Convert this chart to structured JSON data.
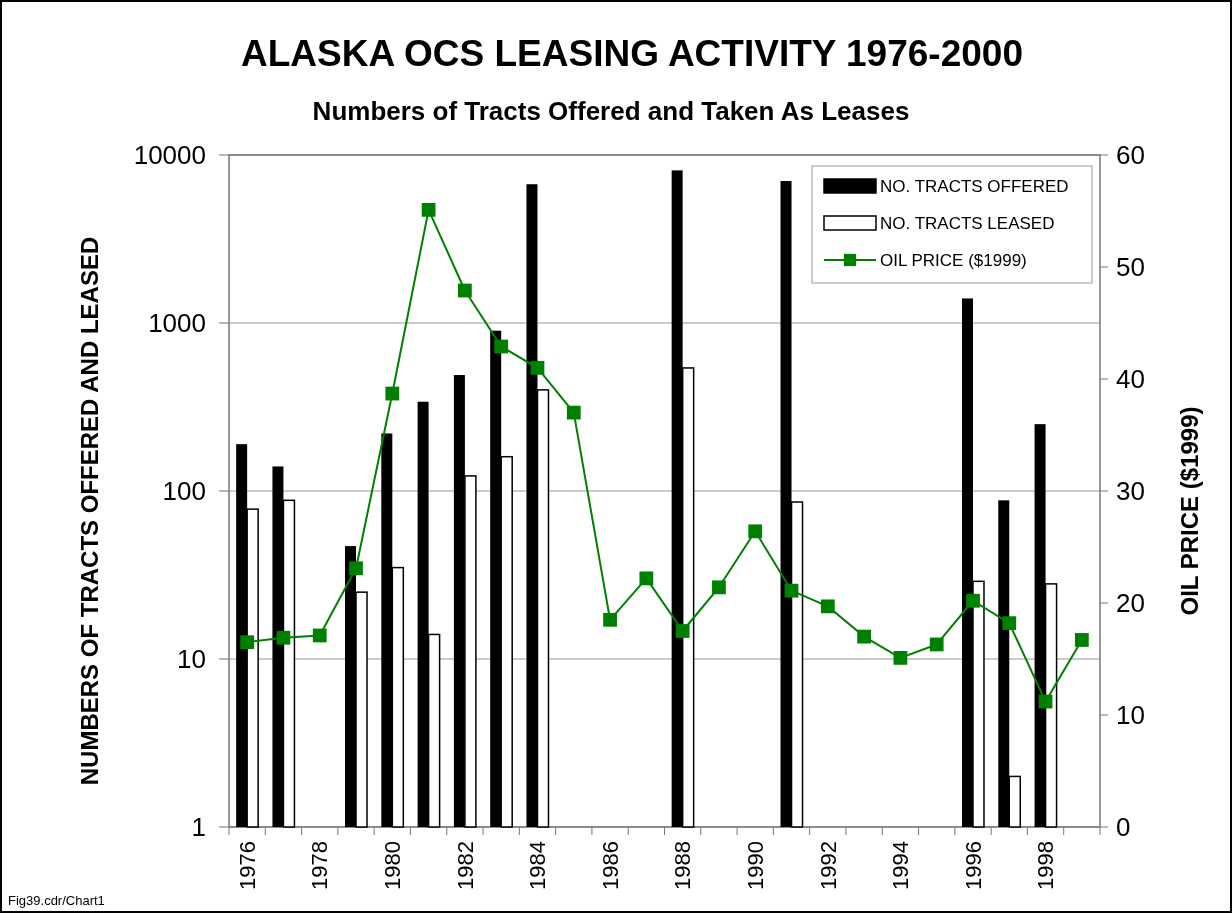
{
  "chart_data": {
    "type": "bar",
    "title": "ALASKA OCS LEASING ACTIVITY 1976-2000",
    "subtitle": "Numbers of Tracts Offered and Taken As Leases",
    "ylabel": "NUMBERS OF TRACTS OFFERED AND LEASED",
    "y2label": "OIL PRICE ($1999)",
    "annotations": [
      "Fig39.cdr/Chart1"
    ],
    "categories": [
      "1976",
      null,
      "1978",
      null,
      "1980",
      null,
      "1982",
      null,
      "1984",
      null,
      "1986",
      null,
      "1988",
      null,
      "1990",
      null,
      "1992",
      null,
      "1994",
      null,
      "1996",
      null,
      "1998",
      null
    ],
    "series": [
      {
        "name": "NO. TRACTS OFFERED",
        "color": "#000000",
        "values": [
          190,
          140,
          null,
          47,
          220,
          340,
          490,
          900,
          6700,
          null,
          null,
          null,
          8100,
          null,
          null,
          7000,
          null,
          null,
          null,
          null,
          1400,
          88,
          250,
          null
        ]
      },
      {
        "name": "NO. TRACTS LEASED",
        "color": "#ffffff",
        "values": [
          78,
          88,
          null,
          25,
          35,
          14,
          123,
          160,
          400,
          null,
          null,
          null,
          540,
          null,
          null,
          86,
          null,
          null,
          null,
          null,
          29,
          2,
          28,
          null
        ]
      },
      {
        "type": "line",
        "name": "OIL PRICE ($1999)",
        "color": "#008000",
        "axis": "y2",
        "values": [
          16.5,
          16.9,
          17.1,
          23.1,
          38.7,
          55.1,
          47.9,
          42.9,
          41.0,
          37.0,
          18.5,
          22.2,
          17.5,
          21.4,
          26.4,
          21.1,
          19.7,
          17.0,
          15.1,
          16.3,
          20.2,
          18.2,
          11.2,
          16.7
        ]
      }
    ],
    "log": "y",
    "ylim": [
      1,
      10000
    ],
    "yticks": [
      1,
      10,
      100,
      1000,
      10000
    ],
    "y2lim": [
      0,
      60
    ],
    "y2ticks": [
      0,
      10,
      20,
      30,
      40,
      50,
      60
    ],
    "grid": "y",
    "legend": "top right",
    "marker": "square",
    "line_style": "solid"
  }
}
